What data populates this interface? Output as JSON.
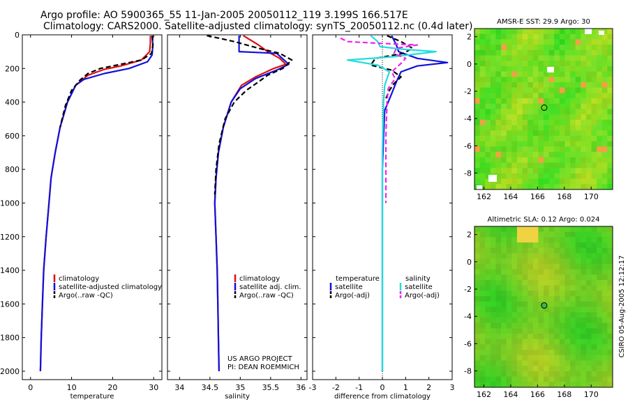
{
  "titles": {
    "line1": "Argo profile: AO 5900365_55 11-Jan-2005 20050112_119 3.199S 166.517E",
    "line2": "Climatology: CARS2000. Satellite-adjusted climatology: synTS_20050112.nc (0.4d later)"
  },
  "side_note": "CSIRO 05-Aug-2005 12:12:17",
  "colors": {
    "climatology": "#dd1111",
    "satellite": "#1010dd",
    "argo": "#000000",
    "cyan": "#22dddd",
    "magenta": "#ee22ee"
  },
  "chart_data": [
    {
      "type": "line",
      "xlabel": "temperature",
      "xlim": [
        -2,
        32
      ],
      "ylim": [
        0,
        2050
      ],
      "xticks": [
        "0",
        "10",
        "20",
        "30"
      ],
      "yticks": [
        "0",
        "200",
        "400",
        "600",
        "800",
        "1000",
        "1200",
        "1400",
        "1600",
        "1800",
        "2000"
      ],
      "legend": [
        "climatology",
        "satellite-adjusted climatology",
        "Argo(..raw -QC)"
      ],
      "series": [
        {
          "name": "climatology",
          "color": "climatology",
          "dash": false,
          "points": [
            [
              29.2,
              5
            ],
            [
              29.2,
              50
            ],
            [
              29,
              100
            ],
            [
              27,
              150
            ],
            [
              22,
              185
            ],
            [
              18,
              205
            ],
            [
              14,
              240
            ],
            [
              11,
              300
            ],
            [
              9,
              400
            ],
            [
              7.2,
              550
            ],
            [
              6,
              700
            ],
            [
              5,
              850
            ],
            [
              4.5,
              1000
            ],
            [
              3.8,
              1200
            ],
            [
              3.2,
              1400
            ],
            [
              2.9,
              1600
            ],
            [
              2.6,
              1800
            ],
            [
              2.4,
              2000
            ]
          ]
        },
        {
          "name": "satellite-adjusted climatology",
          "color": "satellite",
          "dash": false,
          "points": [
            [
              29.6,
              5
            ],
            [
              29.8,
              60
            ],
            [
              29.6,
              120
            ],
            [
              28.5,
              160
            ],
            [
              24,
              200
            ],
            [
              18,
              230
            ],
            [
              13,
              265
            ],
            [
              11,
              300
            ],
            [
              9,
              400
            ],
            [
              7.2,
              550
            ],
            [
              6,
              700
            ],
            [
              5,
              850
            ],
            [
              4.5,
              1000
            ],
            [
              3.8,
              1200
            ],
            [
              3.2,
              1400
            ],
            [
              2.9,
              1600
            ],
            [
              2.6,
              1800
            ],
            [
              2.4,
              2000
            ]
          ]
        },
        {
          "name": "Argo(..raw -QC)",
          "color": "argo",
          "dash": true,
          "points": [
            [
              29.7,
              5
            ],
            [
              29.8,
              60
            ],
            [
              29.5,
              110
            ],
            [
              27,
              150
            ],
            [
              21,
              180
            ],
            [
              17,
              200
            ],
            [
              14,
              230
            ],
            [
              12,
              270
            ],
            [
              10,
              330
            ],
            [
              8.5,
              420
            ],
            [
              7.2,
              550
            ]
          ]
        }
      ]
    },
    {
      "type": "line",
      "xlabel": "salinity",
      "xlim": [
        33.8,
        36.1
      ],
      "ylim": [
        0,
        2050
      ],
      "xticks": [
        "34",
        "34.5",
        "35",
        "35.5",
        "36"
      ],
      "yticks": [],
      "legend": [
        "climatology",
        "satellite adj. clim.",
        "Argo(..raw -QC)"
      ],
      "annotation": [
        "US ARGO PROJECT",
        "PI: DEAN ROEMMICH"
      ],
      "series": [
        {
          "name": "climatology",
          "color": "climatology",
          "dash": false,
          "points": [
            [
              35.05,
              5
            ],
            [
              35.3,
              60
            ],
            [
              35.45,
              100
            ],
            [
              35.65,
              140
            ],
            [
              35.75,
              175
            ],
            [
              35.55,
              200
            ],
            [
              35.25,
              250
            ],
            [
              35.02,
              300
            ],
            [
              34.85,
              400
            ],
            [
              34.72,
              550
            ],
            [
              34.64,
              700
            ],
            [
              34.6,
              850
            ],
            [
              34.58,
              1000
            ],
            [
              34.6,
              1200
            ],
            [
              34.62,
              1400
            ],
            [
              34.63,
              1600
            ],
            [
              34.64,
              1800
            ],
            [
              34.65,
              2000
            ]
          ]
        },
        {
          "name": "satellite adj. clim.",
          "color": "satellite",
          "dash": false,
          "points": [
            [
              34.98,
              5
            ],
            [
              34.98,
              100
            ],
            [
              35.6,
              110
            ],
            [
              35.8,
              175
            ],
            [
              35.6,
              210
            ],
            [
              35.25,
              260
            ],
            [
              35.0,
              320
            ],
            [
              34.85,
              400
            ],
            [
              34.72,
              550
            ],
            [
              34.64,
              700
            ],
            [
              34.6,
              850
            ],
            [
              34.58,
              1000
            ],
            [
              34.6,
              1200
            ],
            [
              34.62,
              1400
            ],
            [
              34.63,
              1600
            ],
            [
              34.64,
              1800
            ],
            [
              34.65,
              2000
            ]
          ]
        },
        {
          "name": "Argo(..raw -QC)",
          "color": "argo",
          "dash": true,
          "points": [
            [
              34.45,
              5
            ],
            [
              34.65,
              20
            ],
            [
              34.9,
              40
            ],
            [
              35.3,
              80
            ],
            [
              35.65,
              110
            ],
            [
              35.85,
              150
            ],
            [
              35.7,
              200
            ],
            [
              35.45,
              240
            ],
            [
              35.3,
              280
            ],
            [
              35.1,
              330
            ],
            [
              34.9,
              400
            ],
            [
              34.75,
              500
            ],
            [
              34.65,
              650
            ],
            [
              34.6,
              800
            ],
            [
              34.58,
              950
            ]
          ]
        }
      ]
    },
    {
      "type": "line",
      "xlabel": "difference from climatology",
      "xlim": [
        -3,
        3
      ],
      "ylim": [
        0,
        2050
      ],
      "xticks": [
        "-3",
        "-2",
        "-1",
        "0",
        "1",
        "2",
        "3"
      ],
      "yticks": [],
      "legend_temp_title": "temperature",
      "legend_sal_title": "salinity",
      "legend_temp": [
        "satellite",
        "Argo(-adj)"
      ],
      "legend_sal": [
        "satellite",
        "Argo(-adj)"
      ],
      "series": [
        {
          "name": "temperature satellite",
          "color": "satellite",
          "dash": false,
          "points": [
            [
              0.4,
              5
            ],
            [
              0.6,
              60
            ],
            [
              0.7,
              100
            ],
            [
              1.5,
              140
            ],
            [
              2.8,
              165
            ],
            [
              1.5,
              185
            ],
            [
              0.8,
              220
            ],
            [
              0.6,
              280
            ],
            [
              0.4,
              350
            ],
            [
              0.1,
              450
            ],
            [
              0.05,
              600
            ],
            [
              0,
              800
            ],
            [
              0,
              1200
            ],
            [
              0,
              2000
            ]
          ]
        },
        {
          "name": "temperature Argo(-adj)",
          "color": "argo",
          "dash": true,
          "points": [
            [
              0.2,
              5
            ],
            [
              0.8,
              40
            ],
            [
              1.3,
              80
            ],
            [
              0.9,
              110
            ],
            [
              -0.3,
              140
            ],
            [
              -0.5,
              180
            ],
            [
              0.4,
              210
            ],
            [
              0.8,
              250
            ],
            [
              0.5,
              290
            ],
            [
              0.3,
              330
            ],
            [
              0.15,
              380
            ]
          ]
        },
        {
          "name": "salinity satellite",
          "color": "cyan",
          "dash": false,
          "points": [
            [
              -0.5,
              5
            ],
            [
              -0.2,
              40
            ],
            [
              -0.1,
              70
            ],
            [
              0.8,
              85
            ],
            [
              2.3,
              100
            ],
            [
              0.5,
              130
            ],
            [
              -1.5,
              150
            ],
            [
              -0.2,
              180
            ],
            [
              0.3,
              220
            ],
            [
              0.1,
              300
            ],
            [
              0.05,
              400
            ],
            [
              0,
              700
            ],
            [
              0,
              2000
            ]
          ]
        },
        {
          "name": "salinity Argo(-adj)",
          "color": "magenta",
          "dash": true,
          "points": [
            [
              -1.8,
              20
            ],
            [
              -1.5,
              40
            ],
            [
              -0.2,
              50
            ],
            [
              1.5,
              60
            ],
            [
              0.6,
              80
            ],
            [
              0.5,
              110
            ],
            [
              1.0,
              140
            ],
            [
              0.8,
              170
            ],
            [
              0.4,
              220
            ],
            [
              0.55,
              260
            ],
            [
              0.25,
              320
            ],
            [
              0.2,
              400
            ],
            [
              0.15,
              600
            ],
            [
              0.15,
              800
            ],
            [
              0.15,
              1000
            ]
          ]
        }
      ]
    },
    {
      "type": "heatmap",
      "title": "AMSR-E SST: 29.9 Argo: 30",
      "xlim": [
        161.3,
        171.6
      ],
      "ylim": [
        -9.2,
        2.6
      ],
      "xticks": [
        "162",
        "164",
        "166",
        "168",
        "170"
      ],
      "yticks": [
        "2",
        "0",
        "-2",
        "-4",
        "-6",
        "-8"
      ],
      "marker": [
        166.5,
        -3.2
      ]
    },
    {
      "type": "heatmap",
      "title": "Altimetric SLA: 0.12 Argo: 0.024",
      "xlim": [
        161.3,
        171.6
      ],
      "ylim": [
        -9.2,
        2.6
      ],
      "xticks": [
        "162",
        "164",
        "166",
        "168",
        "170"
      ],
      "yticks": [
        "2",
        "0",
        "-2",
        "-4",
        "-6",
        "-8"
      ],
      "marker": [
        166.5,
        -3.2
      ]
    }
  ]
}
